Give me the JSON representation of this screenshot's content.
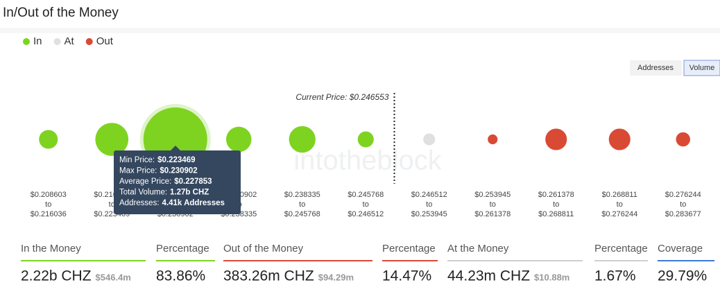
{
  "header": {
    "title": "In/Out of the Money"
  },
  "buttons": [
    "Addresses",
    "Volume"
  ],
  "chart_data": {
    "type": "bubble",
    "unit_note": null,
    "range_word": "to",
    "bin_edges": [
      {
        "value": 0.208603,
        "label": "$0.208603"
      },
      {
        "value": 0.216036,
        "label": "$0.216036"
      },
      {
        "value": 0.223469,
        "label": "$0.223469"
      },
      {
        "value": 0.230902,
        "label": "$0.230902"
      },
      {
        "value": 0.238335,
        "label": "$0.238335"
      },
      {
        "value": 0.245768,
        "label": "$0.245768"
      },
      {
        "value": 0.246512,
        "label": "$0.246512"
      },
      {
        "value": 0.253945,
        "label": "$0.253945"
      },
      {
        "value": 0.261378,
        "label": "$0.261378"
      },
      {
        "value": 0.268811,
        "label": "$0.268811"
      },
      {
        "value": 0.276244,
        "label": "$0.276244"
      },
      {
        "value": 0.283677,
        "label": "$0.283677"
      }
    ],
    "series": [
      {
        "name": "In",
        "color": "#7ed321",
        "values": [
          0.11,
          0.34,
          1.27,
          0.2,
          0.22,
          0.08,
          null,
          null,
          null,
          null,
          null
        ]
      },
      {
        "name": "At",
        "color": "#e0e0e0",
        "values": [
          null,
          null,
          null,
          null,
          null,
          null,
          0.044,
          null,
          null,
          null,
          null
        ]
      },
      {
        "name": "Out",
        "color": "#d94a35",
        "values": [
          null,
          null,
          null,
          null,
          null,
          null,
          null,
          0.03,
          0.145,
          0.145,
          0.063
        ]
      }
    ],
    "current_price": {
      "value": 0.246553,
      "label": "Current Price: $0.246553"
    },
    "watermark": "intotheblock",
    "tooltip": [
      {
        "label": "Min Price:",
        "value": "$0.223469"
      },
      {
        "label": "Max Price:",
        "value": "$0.230902"
      },
      {
        "label": "Average Price:",
        "value": "$0.227853"
      },
      {
        "label": "Total Volume:",
        "value": "1.27b CHZ"
      },
      {
        "label": "Addresses:",
        "value": "4.41k Addresses"
      }
    ]
  },
  "summary": [
    {
      "title": "In the Money",
      "value": "2.22b CHZ",
      "sub": "$546.4m",
      "color": "#7ed321"
    },
    {
      "title": "Percentage",
      "value": "83.86%",
      "color": "#7ed321"
    },
    {
      "title": "Out of the Money",
      "value": "383.26m CHZ",
      "sub": "$94.29m",
      "color": "#d94a35"
    },
    {
      "title": "Percentage",
      "value": "14.47%",
      "color": "#d94a35"
    },
    {
      "title": "At the Money",
      "value": "44.23m CHZ",
      "sub": "$10.88m",
      "color": "#cfcfcf"
    },
    {
      "title": "Percentage",
      "value": "1.67%",
      "color": "#cfcfcf"
    },
    {
      "title": "Coverage",
      "value": "29.79%",
      "color": "#3b78d8"
    }
  ]
}
